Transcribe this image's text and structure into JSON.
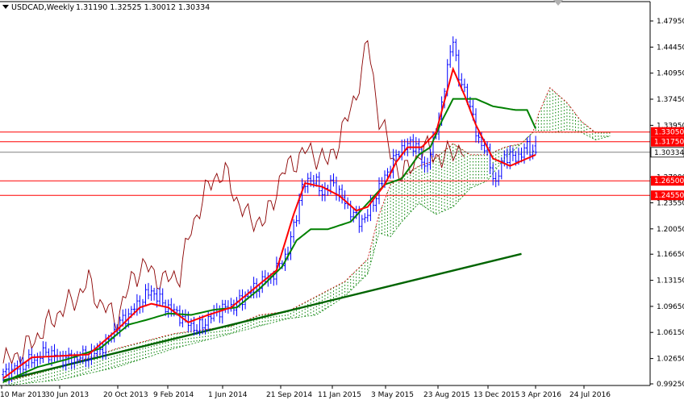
{
  "header": {
    "symbol_label": "USDCAD,Weekly",
    "ohlc_label": "1.31190 1.32525 1.30012 1.30334"
  },
  "colors": {
    "background": "#ffffff",
    "candles": "#0000ff",
    "tenkan": "#ff0000",
    "kijun": "#008000",
    "chikou": "#8b0000",
    "cloud_bull": "#008000",
    "cloud_bear": "#cc0000",
    "hlines": "#ff0000",
    "trendline": "#006400",
    "price_line": "#808080",
    "axis": "#000000"
  },
  "chart_data": {
    "type": "candlestick",
    "title": "USDCAD,Weekly",
    "ylim": [
      0.9925,
      1.4925
    ],
    "y_ticks": [
      "1.47950",
      "1.44450",
      "1.40950",
      "1.37450",
      "1.33950",
      "1.30334",
      "1.27000",
      "1.23550",
      "1.20050",
      "1.16650",
      "1.13150",
      "1.09650",
      "1.06150",
      "1.02650",
      "0.99250"
    ],
    "x_ticks": [
      "10 Mar 2013",
      "30 Jun 2013",
      "20 Oct 2013",
      "9 Feb 2014",
      "1 Jun 2014",
      "21 Sep 2014",
      "11 Jan 2015",
      "3 May 2015",
      "23 Aug 2015",
      "13 Dec 2015",
      "3 Apr 2016",
      "24 Jul 2016"
    ],
    "last_ohlc": {
      "open": 1.3119,
      "high": 1.32525,
      "low": 1.30012,
      "close": 1.30334
    },
    "current_price": "1.30334",
    "horizontal_levels": [
      {
        "value": 1.3305,
        "label": "1.33050"
      },
      {
        "value": 1.3175,
        "label": "1.31750"
      },
      {
        "value": 1.265,
        "label": "1.26500"
      },
      {
        "value": 1.2455,
        "label": "1.24550"
      }
    ],
    "trendline": {
      "from": [
        0,
        0.997
      ],
      "to": [
        182,
        1.167
      ]
    },
    "price_anchors": [
      [
        0,
        1.005
      ],
      [
        8,
        1.02
      ],
      [
        15,
        1.035
      ],
      [
        22,
        1.025
      ],
      [
        30,
        1.03
      ],
      [
        36,
        1.045
      ],
      [
        40,
        1.07
      ],
      [
        47,
        1.098
      ],
      [
        52,
        1.118
      ],
      [
        56,
        1.1
      ],
      [
        60,
        1.09
      ],
      [
        65,
        1.075
      ],
      [
        68,
        1.065
      ],
      [
        75,
        1.09
      ],
      [
        82,
        1.1
      ],
      [
        88,
        1.12
      ],
      [
        95,
        1.14
      ],
      [
        100,
        1.17
      ],
      [
        105,
        1.255
      ],
      [
        108,
        1.27
      ],
      [
        112,
        1.25
      ],
      [
        116,
        1.262
      ],
      [
        120,
        1.235
      ],
      [
        125,
        1.21
      ],
      [
        128,
        1.22
      ],
      [
        132,
        1.255
      ],
      [
        136,
        1.285
      ],
      [
        140,
        1.31
      ],
      [
        145,
        1.315
      ],
      [
        148,
        1.28
      ],
      [
        152,
        1.33
      ],
      [
        155,
        1.39
      ],
      [
        158,
        1.46
      ],
      [
        160,
        1.4
      ],
      [
        163,
        1.38
      ],
      [
        166,
        1.33
      ],
      [
        170,
        1.3
      ],
      [
        173,
        1.26
      ],
      [
        176,
        1.3
      ],
      [
        180,
        1.295
      ],
      [
        184,
        1.31
      ],
      [
        187,
        1.30334
      ]
    ],
    "tenkan_anchors": [
      [
        0,
        1.0
      ],
      [
        10,
        1.028
      ],
      [
        20,
        1.03
      ],
      [
        30,
        1.032
      ],
      [
        40,
        1.065
      ],
      [
        48,
        1.095
      ],
      [
        52,
        1.1
      ],
      [
        58,
        1.095
      ],
      [
        65,
        1.075
      ],
      [
        72,
        1.085
      ],
      [
        80,
        1.095
      ],
      [
        88,
        1.12
      ],
      [
        96,
        1.145
      ],
      [
        102,
        1.22
      ],
      [
        106,
        1.262
      ],
      [
        112,
        1.257
      ],
      [
        118,
        1.245
      ],
      [
        124,
        1.225
      ],
      [
        128,
        1.23
      ],
      [
        134,
        1.26
      ],
      [
        138,
        1.29
      ],
      [
        142,
        1.31
      ],
      [
        147,
        1.31
      ],
      [
        152,
        1.33
      ],
      [
        158,
        1.415
      ],
      [
        162,
        1.38
      ],
      [
        166,
        1.34
      ],
      [
        172,
        1.295
      ],
      [
        178,
        1.285
      ],
      [
        184,
        1.295
      ],
      [
        187,
        1.3
      ]
    ],
    "kijun_anchors": [
      [
        0,
        0.995
      ],
      [
        12,
        1.015
      ],
      [
        22,
        1.025
      ],
      [
        34,
        1.04
      ],
      [
        44,
        1.072
      ],
      [
        50,
        1.078
      ],
      [
        58,
        1.087
      ],
      [
        66,
        1.085
      ],
      [
        74,
        1.092
      ],
      [
        82,
        1.095
      ],
      [
        90,
        1.12
      ],
      [
        98,
        1.15
      ],
      [
        103,
        1.185
      ],
      [
        108,
        1.2
      ],
      [
        114,
        1.2
      ],
      [
        122,
        1.21
      ],
      [
        128,
        1.235
      ],
      [
        134,
        1.26
      ],
      [
        140,
        1.268
      ],
      [
        146,
        1.3
      ],
      [
        150,
        1.31
      ],
      [
        154,
        1.345
      ],
      [
        158,
        1.375
      ],
      [
        166,
        1.375
      ],
      [
        172,
        1.365
      ],
      [
        180,
        1.36
      ],
      [
        184,
        1.36
      ],
      [
        187,
        1.335
      ]
    ],
    "chikou_anchors": [
      [
        0,
        1.02
      ],
      [
        8,
        1.04
      ],
      [
        14,
        1.065
      ],
      [
        20,
        1.09
      ],
      [
        26,
        1.11
      ],
      [
        30,
        1.13
      ],
      [
        34,
        1.1
      ],
      [
        40,
        1.08
      ],
      [
        46,
        1.14
      ],
      [
        50,
        1.15
      ],
      [
        56,
        1.13
      ],
      [
        62,
        1.14
      ],
      [
        66,
        1.2
      ],
      [
        70,
        1.24
      ],
      [
        74,
        1.27
      ],
      [
        78,
        1.275
      ],
      [
        82,
        1.24
      ],
      [
        86,
        1.215
      ],
      [
        92,
        1.21
      ],
      [
        98,
        1.275
      ],
      [
        102,
        1.29
      ],
      [
        106,
        1.305
      ],
      [
        110,
        1.3
      ],
      [
        114,
        1.29
      ],
      [
        118,
        1.32
      ],
      [
        122,
        1.36
      ],
      [
        126,
        1.41
      ],
      [
        128,
        1.455
      ],
      [
        132,
        1.35
      ],
      [
        136,
        1.305
      ],
      [
        140,
        1.27
      ],
      [
        146,
        1.3
      ],
      [
        150,
        1.31
      ],
      [
        154,
        1.29
      ],
      [
        158,
        1.31
      ],
      [
        162,
        1.3
      ]
    ],
    "cloud_a_anchors": [
      [
        0,
        0.995
      ],
      [
        20,
        1.015
      ],
      [
        40,
        1.04
      ],
      [
        60,
        1.06
      ],
      [
        80,
        1.07
      ],
      [
        90,
        1.085
      ],
      [
        100,
        1.09
      ],
      [
        110,
        1.11
      ],
      [
        120,
        1.13
      ],
      [
        128,
        1.16
      ],
      [
        132,
        1.22
      ],
      [
        136,
        1.26
      ],
      [
        140,
        1.27
      ],
      [
        146,
        1.285
      ],
      [
        150,
        1.29
      ],
      [
        158,
        1.315
      ],
      [
        164,
        1.3
      ],
      [
        170,
        1.3
      ],
      [
        176,
        1.31
      ],
      [
        182,
        1.315
      ],
      [
        186,
        1.33
      ],
      [
        188,
        1.355
      ],
      [
        192,
        1.39
      ],
      [
        198,
        1.37
      ],
      [
        203,
        1.345
      ],
      [
        208,
        1.33
      ],
      [
        213,
        1.33
      ]
    ],
    "cloud_b_anchors": [
      [
        0,
        0.99
      ],
      [
        20,
        0.998
      ],
      [
        40,
        1.015
      ],
      [
        60,
        1.04
      ],
      [
        80,
        1.06
      ],
      [
        90,
        1.07
      ],
      [
        100,
        1.08
      ],
      [
        110,
        1.085
      ],
      [
        120,
        1.11
      ],
      [
        128,
        1.14
      ],
      [
        132,
        1.195
      ],
      [
        136,
        1.19
      ],
      [
        140,
        1.21
      ],
      [
        146,
        1.235
      ],
      [
        152,
        1.22
      ],
      [
        158,
        1.23
      ],
      [
        164,
        1.255
      ],
      [
        170,
        1.265
      ],
      [
        176,
        1.295
      ],
      [
        182,
        1.315
      ],
      [
        186,
        1.33
      ],
      [
        190,
        1.33
      ],
      [
        198,
        1.33
      ],
      [
        203,
        1.33
      ],
      [
        208,
        1.32
      ],
      [
        213,
        1.325
      ]
    ]
  }
}
